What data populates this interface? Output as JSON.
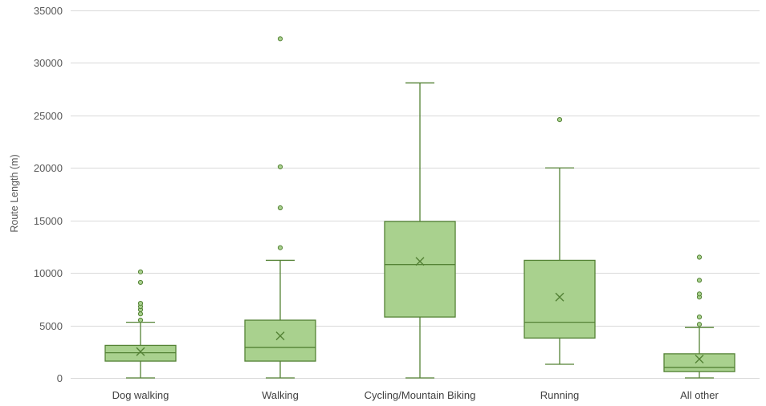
{
  "chart_data": {
    "type": "box",
    "title": "",
    "xlabel": "",
    "ylabel": "Route Length (m)",
    "ylim": [
      0,
      35000
    ],
    "yticks": [
      0,
      5000,
      10000,
      15000,
      20000,
      25000,
      30000,
      35000
    ],
    "grid": true,
    "legend": "none",
    "colors": {
      "box_fill": "#a9d18e",
      "box_stroke": "#548235",
      "outlier_fill": "#a9d18e",
      "gridline": "#d9d9d9"
    },
    "categories": [
      "Dog walking",
      "Walking",
      "Cycling/Mountain Biking",
      "Running",
      "All other"
    ],
    "boxes": [
      {
        "category": "Dog walking",
        "min": 0,
        "q1": 1600,
        "median": 2400,
        "q3": 3100,
        "max": 5300,
        "mean": 2500,
        "outliers": [
          5500,
          6100,
          6500,
          6800,
          7100,
          9100,
          10100
        ]
      },
      {
        "category": "Walking",
        "min": 0,
        "q1": 1600,
        "median": 2900,
        "q3": 5500,
        "max": 11200,
        "mean": 4000,
        "outliers": [
          12400,
          16200,
          20100,
          32300
        ]
      },
      {
        "category": "Cycling/Mountain Biking",
        "min": 0,
        "q1": 5800,
        "median": 10800,
        "q3": 14900,
        "max": 28100,
        "mean": 11100,
        "outliers": []
      },
      {
        "category": "Running",
        "min": 1300,
        "q1": 3800,
        "median": 5300,
        "q3": 11200,
        "max": 20000,
        "mean": 7700,
        "outliers": [
          24600
        ]
      },
      {
        "category": "All other",
        "min": 0,
        "q1": 600,
        "median": 1000,
        "q3": 2300,
        "max": 4800,
        "mean": 1800,
        "outliers": [
          5100,
          5800,
          7700,
          8000,
          9300,
          11500
        ]
      }
    ]
  }
}
